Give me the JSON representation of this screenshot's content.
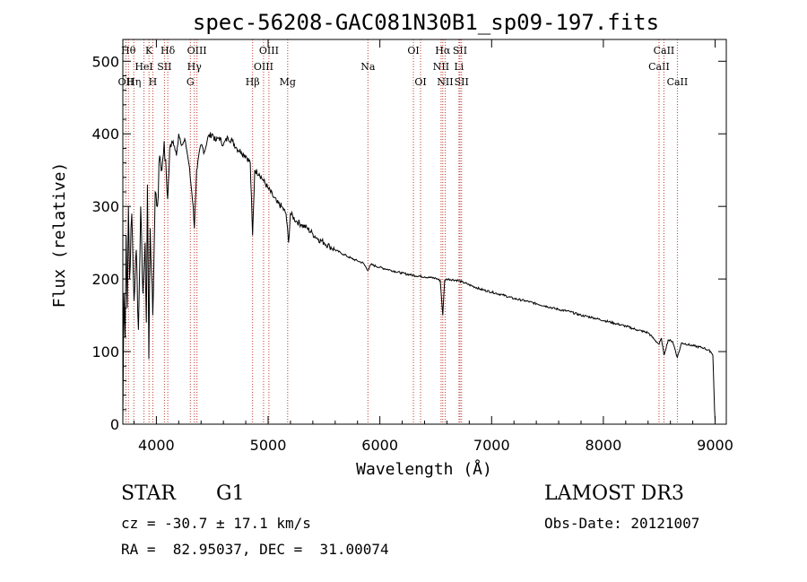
{
  "chart_data": {
    "type": "line",
    "title": "spec-56208-GAC081N30B1_sp09-197.fits",
    "xlabel": "Wavelength (Å)",
    "ylabel": "Flux (relative)",
    "xlim": [
      3700,
      9100
    ],
    "ylim": [
      0,
      530
    ],
    "x_ticks": [
      4000,
      5000,
      6000,
      7000,
      8000,
      9000
    ],
    "y_ticks": [
      0,
      100,
      200,
      300,
      400,
      500
    ],
    "series": [
      {
        "name": "spectrum",
        "color": "#000000",
        "points": [
          [
            3700,
            5
          ],
          [
            3710,
            180
          ],
          [
            3720,
            120
          ],
          [
            3730,
            260
          ],
          [
            3740,
            160
          ],
          [
            3750,
            300
          ],
          [
            3760,
            200
          ],
          [
            3780,
            290
          ],
          [
            3800,
            170
          ],
          [
            3820,
            240
          ],
          [
            3840,
            130
          ],
          [
            3860,
            300
          ],
          [
            3880,
            180
          ],
          [
            3900,
            250
          ],
          [
            3910,
            140
          ],
          [
            3920,
            330
          ],
          [
            3933,
            90
          ],
          [
            3945,
            270
          ],
          [
            3968,
            150
          ],
          [
            3990,
            320
          ],
          [
            4010,
            300
          ],
          [
            4030,
            370
          ],
          [
            4050,
            350
          ],
          [
            4070,
            390
          ],
          [
            4090,
            340
          ],
          [
            4101,
            310
          ],
          [
            4120,
            380
          ],
          [
            4150,
            390
          ],
          [
            4180,
            370
          ],
          [
            4200,
            400
          ],
          [
            4230,
            385
          ],
          [
            4260,
            390
          ],
          [
            4290,
            360
          ],
          [
            4310,
            330
          ],
          [
            4330,
            300
          ],
          [
            4340,
            270
          ],
          [
            4360,
            350
          ],
          [
            4400,
            385
          ],
          [
            4430,
            375
          ],
          [
            4460,
            395
          ],
          [
            4500,
            400
          ],
          [
            4530,
            390
          ],
          [
            4560,
            395
          ],
          [
            4600,
            385
          ],
          [
            4640,
            395
          ],
          [
            4680,
            390
          ],
          [
            4720,
            380
          ],
          [
            4760,
            375
          ],
          [
            4800,
            370
          ],
          [
            4840,
            360
          ],
          [
            4861,
            260
          ],
          [
            4880,
            350
          ],
          [
            4920,
            345
          ],
          [
            4960,
            335
          ],
          [
            5000,
            325
          ],
          [
            5040,
            315
          ],
          [
            5080,
            305
          ],
          [
            5120,
            300
          ],
          [
            5160,
            290
          ],
          [
            5183,
            250
          ],
          [
            5200,
            290
          ],
          [
            5250,
            280
          ],
          [
            5300,
            275
          ],
          [
            5350,
            270
          ],
          [
            5400,
            262
          ],
          [
            5450,
            255
          ],
          [
            5500,
            250
          ],
          [
            5550,
            245
          ],
          [
            5600,
            240
          ],
          [
            5650,
            236
          ],
          [
            5700,
            232
          ],
          [
            5750,
            228
          ],
          [
            5800,
            225
          ],
          [
            5850,
            222
          ],
          [
            5893,
            212
          ],
          [
            5920,
            220
          ],
          [
            6000,
            216
          ],
          [
            6100,
            212
          ],
          [
            6200,
            208
          ],
          [
            6300,
            205
          ],
          [
            6400,
            203
          ],
          [
            6500,
            201
          ],
          [
            6540,
            198
          ],
          [
            6563,
            150
          ],
          [
            6580,
            198
          ],
          [
            6600,
            200
          ],
          [
            6700,
            198
          ],
          [
            6800,
            192
          ],
          [
            6900,
            186
          ],
          [
            7000,
            182
          ],
          [
            7100,
            178
          ],
          [
            7200,
            173
          ],
          [
            7300,
            170
          ],
          [
            7400,
            166
          ],
          [
            7500,
            162
          ],
          [
            7600,
            158
          ],
          [
            7700,
            155
          ],
          [
            7800,
            150
          ],
          [
            7900,
            147
          ],
          [
            8000,
            143
          ],
          [
            8100,
            139
          ],
          [
            8200,
            135
          ],
          [
            8300,
            130
          ],
          [
            8400,
            126
          ],
          [
            8498,
            110
          ],
          [
            8520,
            118
          ],
          [
            8542,
            95
          ],
          [
            8580,
            116
          ],
          [
            8620,
            114
          ],
          [
            8662,
            92
          ],
          [
            8700,
            112
          ],
          [
            8800,
            108
          ],
          [
            8900,
            105
          ],
          [
            8960,
            100
          ],
          [
            8980,
            95
          ],
          [
            8995,
            20
          ],
          [
            9000,
            5
          ]
        ]
      }
    ],
    "line_markers": [
      {
        "wavelength": 3750,
        "label": "Hθ",
        "row": 0
      },
      {
        "wavelength": 3727,
        "label": "OII",
        "row": 2
      },
      {
        "wavelength": 3798,
        "label": "Hη",
        "row": 2
      },
      {
        "wavelength": 3889,
        "label": "HeI",
        "row": 1
      },
      {
        "wavelength": 3934,
        "label": "K",
        "row": 0
      },
      {
        "wavelength": 3968,
        "label": "H",
        "row": 2
      },
      {
        "wavelength": 4072,
        "label": "SII",
        "row": 1
      },
      {
        "wavelength": 4102,
        "label": "Hδ",
        "row": 0
      },
      {
        "wavelength": 4304,
        "label": "G",
        "row": 2
      },
      {
        "wavelength": 4340,
        "label": "Hγ",
        "row": 1
      },
      {
        "wavelength": 4363,
        "label": "OIII",
        "row": 0
      },
      {
        "wavelength": 4861,
        "label": "Hβ",
        "row": 2
      },
      {
        "wavelength": 4959,
        "label": "OIII",
        "row": 1
      },
      {
        "wavelength": 5007,
        "label": "OIII",
        "row": 0
      },
      {
        "wavelength": 5175,
        "label": "Mg",
        "row": 2
      },
      {
        "wavelength": 5893,
        "label": "Na",
        "row": 1
      },
      {
        "wavelength": 6300,
        "label": "OI",
        "row": 0
      },
      {
        "wavelength": 6364,
        "label": "OI",
        "row": 2
      },
      {
        "wavelength": 6548,
        "label": "NII",
        "row": 1
      },
      {
        "wavelength": 6563,
        "label": "Hα",
        "row": 0
      },
      {
        "wavelength": 6584,
        "label": "NII",
        "row": 2
      },
      {
        "wavelength": 6708,
        "label": "Li",
        "row": 1
      },
      {
        "wavelength": 6717,
        "label": "SII",
        "row": 0
      },
      {
        "wavelength": 6731,
        "label": "SII",
        "row": 2
      },
      {
        "wavelength": 8498,
        "label": "CaII",
        "row": 1
      },
      {
        "wavelength": 8542,
        "label": "CaII",
        "row": 0
      },
      {
        "wavelength": 8662,
        "label": "CaII",
        "row": 2
      }
    ]
  },
  "info": {
    "class": "STAR",
    "subclass": "G1",
    "survey": "LAMOST DR3",
    "cz": "cz = -30.7 ± 17.1 km/s",
    "obs_date": "Obs-Date: 20121007",
    "coords": "RA =  82.95037, DEC =  31.00074"
  },
  "colors": {
    "marker": "#c0392b",
    "spectrum": "#000000"
  }
}
